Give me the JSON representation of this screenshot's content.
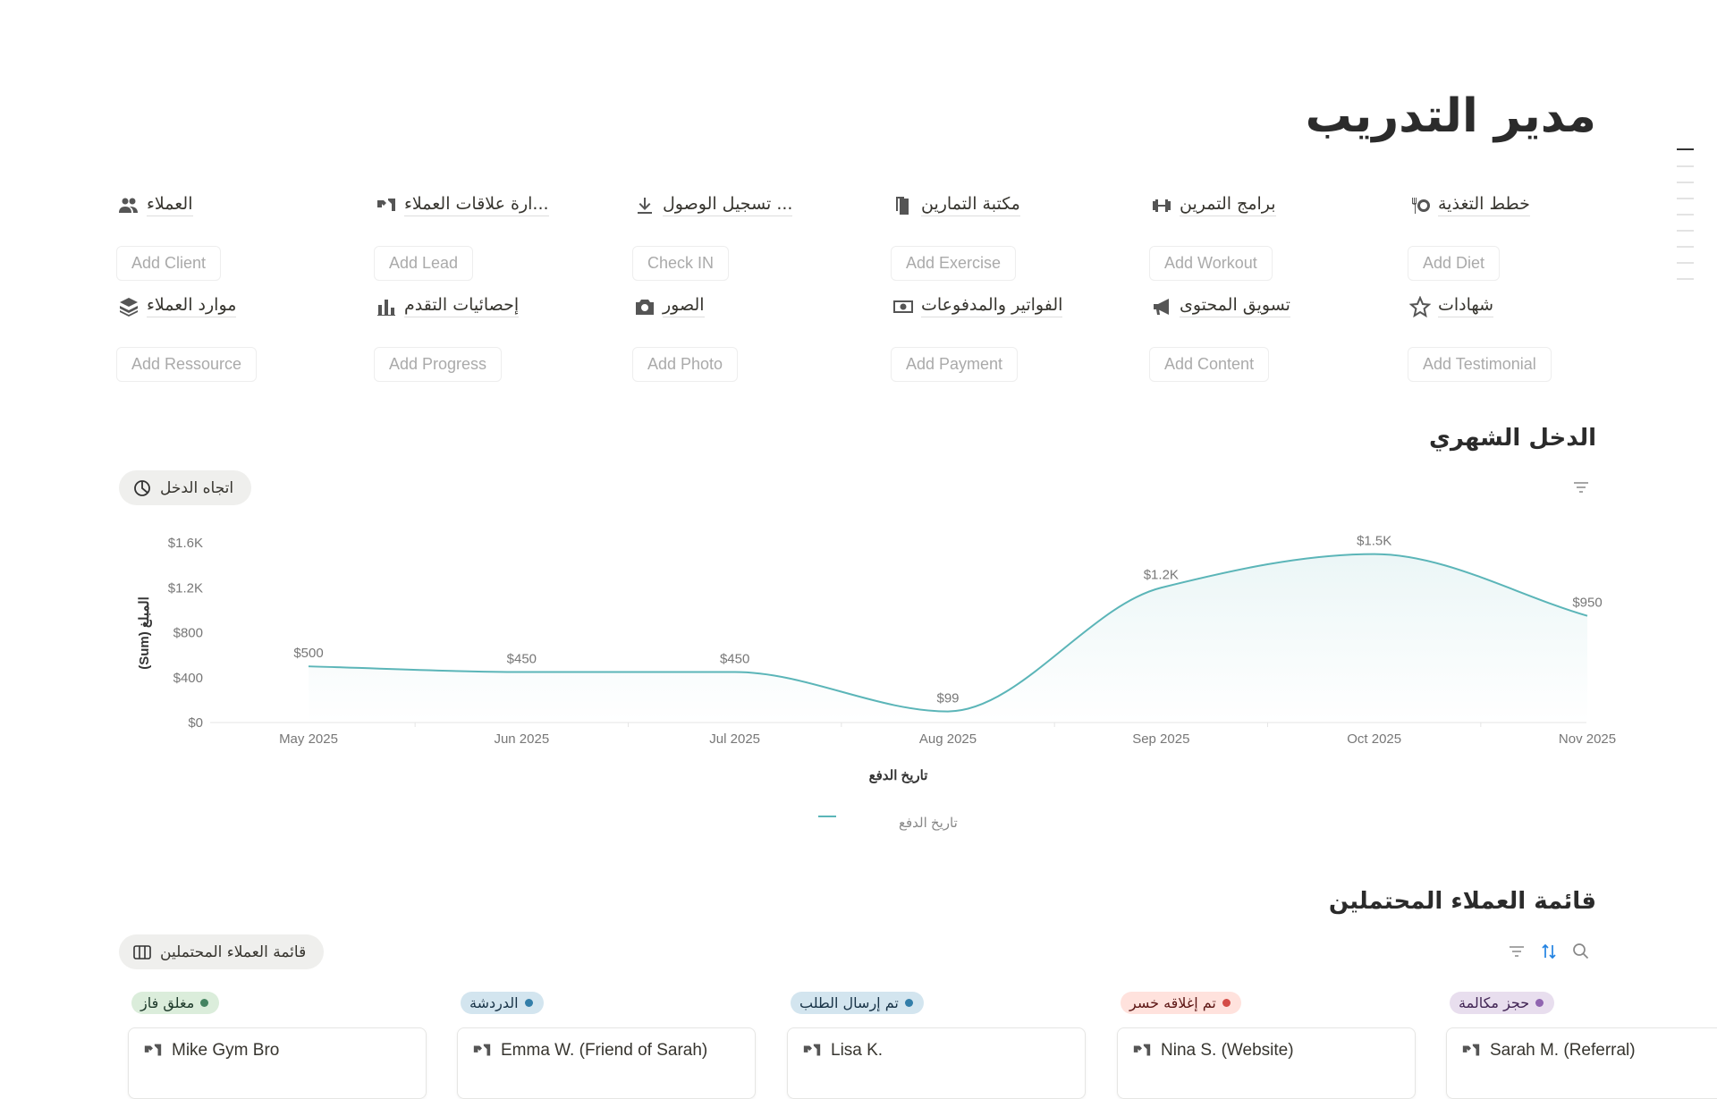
{
  "page": {
    "title": "مدير التدريب"
  },
  "quick_links": [
    {
      "label": "العملاء",
      "icon": "people-icon",
      "button": "Add Client"
    },
    {
      "label": "...ارة علاقات العملاء",
      "icon": "handshake-icon",
      "button": "Add Lead"
    },
    {
      "label": "... تسجيل الوصول",
      "icon": "download-icon",
      "button": "Check IN"
    },
    {
      "label": "مكتبة التمارين",
      "icon": "copy-icon",
      "button": "Add Exercise"
    },
    {
      "label": "برامج التمرين",
      "icon": "dumbbell-icon",
      "button": "Add Workout"
    },
    {
      "label": "خطط التغذية",
      "icon": "plate-icon",
      "button": "Add Diet"
    },
    {
      "label": "موارد العملاء",
      "icon": "layers-icon",
      "button": "Add Ressource"
    },
    {
      "label": "إحصائيات التقدم",
      "icon": "bar-chart-icon",
      "button": "Add Progress"
    },
    {
      "label": "الصور",
      "icon": "camera-icon",
      "button": "Add Photo"
    },
    {
      "label": "الفواتير والمدفوعات",
      "icon": "money-icon",
      "button": "Add Payment"
    },
    {
      "label": "تسويق المحتوى",
      "icon": "megaphone-icon",
      "button": "Add Content"
    },
    {
      "label": "شهادات",
      "icon": "star-icon",
      "button": "Add Testimonial"
    }
  ],
  "income": {
    "heading": "الدخل الشهري",
    "view_label": "اتجاه الدخل",
    "view_icon": "pie-chart-icon"
  },
  "chart_data": {
    "type": "area",
    "xlabel": "تاريخ الدفع",
    "ylabel": "المبلغ (Sum)",
    "categories": [
      "May 2025",
      "Jun 2025",
      "Jul 2025",
      "Aug 2025",
      "Sep 2025",
      "Oct 2025",
      "Nov 2025"
    ],
    "series": [
      {
        "name": "تاريخ الدفع",
        "values": [
          500,
          450,
          450,
          99,
          1200,
          1500,
          950
        ],
        "labels": [
          "$500",
          "$450",
          "$450",
          "$99",
          "$1.2K",
          "$1.5K",
          "$950"
        ]
      }
    ],
    "yticks": [
      {
        "v": 0,
        "t": "$0"
      },
      {
        "v": 400,
        "t": "$400"
      },
      {
        "v": 800,
        "t": "$800"
      },
      {
        "v": 1200,
        "t": "$1.2K"
      },
      {
        "v": 1600,
        "t": "$1.6K"
      }
    ],
    "ylim": [
      0,
      1600
    ],
    "grid": false,
    "legend": "bottom",
    "color": "#5bb5b8"
  },
  "leads": {
    "heading": "قائمة العملاء المحتملين",
    "view_label": "قائمة العملاء المحتملين",
    "view_icon": "board-icon",
    "columns": [
      {
        "status": "مغلق فاز",
        "bg": "#dbeddb",
        "dot": "#448361",
        "fg": "#1c3829",
        "card": "Mike Gym Bro"
      },
      {
        "status": "الدردشة",
        "bg": "#d3e5ef",
        "dot": "#337ea9",
        "fg": "#183347",
        "card": "Emma W. (Friend of Sarah)"
      },
      {
        "status": "تم إرسال الطلب",
        "bg": "#d3e5ef",
        "dot": "#337ea9",
        "fg": "#183347",
        "card": "Lisa K."
      },
      {
        "status": "تم إغلاقه خسر",
        "bg": "#ffe2dd",
        "dot": "#d44c47",
        "fg": "#5d1715",
        "card": "Nina S. (Website)"
      },
      {
        "status": "حجز مكالمة",
        "bg": "#e8deee",
        "dot": "#9065b0",
        "fg": "#412454",
        "card": "Sarah M. (Referral)"
      }
    ]
  }
}
